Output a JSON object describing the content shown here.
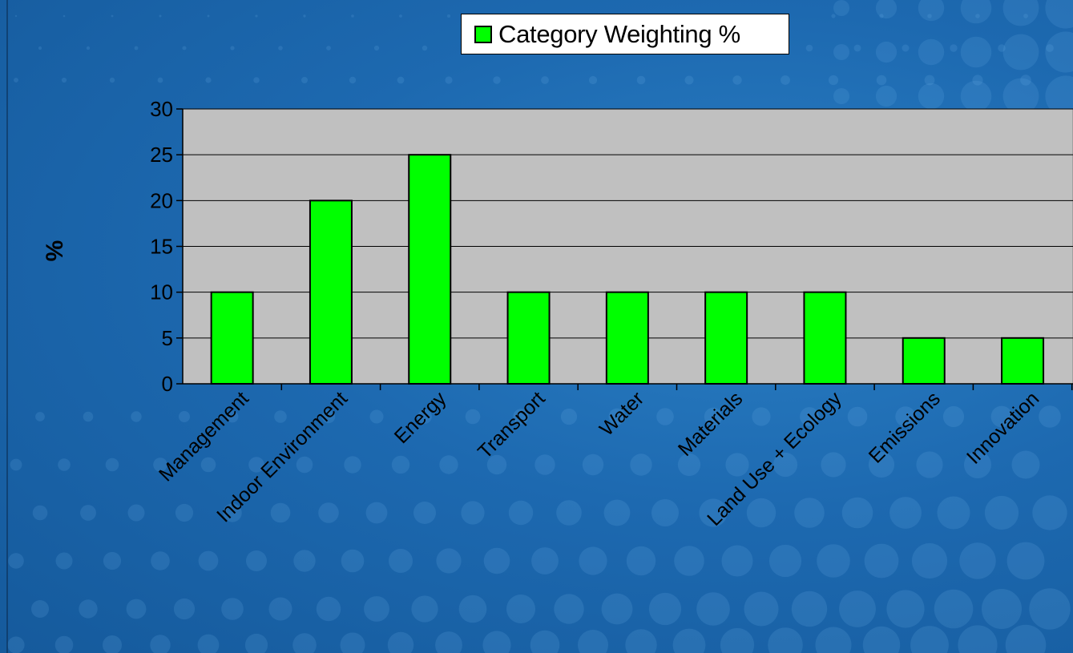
{
  "chart_data": {
    "type": "bar",
    "categories": [
      "Management",
      "Indoor Environment",
      "Energy",
      "Transport",
      "Water",
      "Materials",
      "Land Use + Ecology",
      "Emissions",
      "Innovation"
    ],
    "series": [
      {
        "name": "Category Weighting %",
        "values": [
          10,
          20,
          25,
          10,
          10,
          10,
          10,
          5,
          5
        ]
      }
    ],
    "ylabel": "%",
    "ylim": [
      0,
      30
    ],
    "yticks": [
      "0",
      "5",
      "10",
      "15",
      "20",
      "25",
      "30"
    ],
    "grid": true,
    "legend_position": "top-center",
    "colors": {
      "bar": "#00ff00",
      "plot_area": "#c0c0c0",
      "background": "#1d69b0"
    }
  }
}
